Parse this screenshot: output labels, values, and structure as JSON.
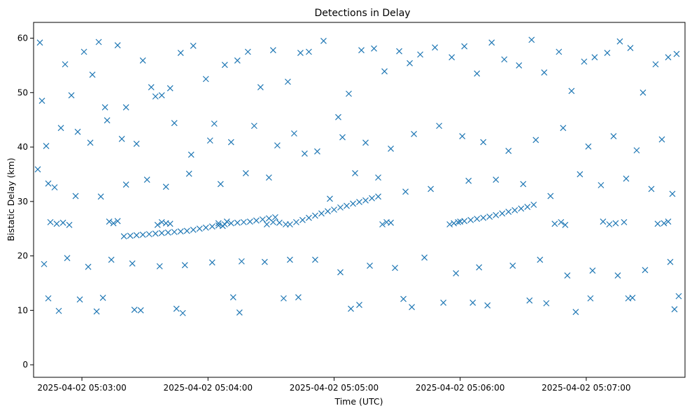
{
  "chart_data": {
    "type": "scatter",
    "title": "Detections in Delay",
    "xlabel": "Time (UTC)",
    "ylabel": "Bistatic Delay (km)",
    "x_unit": "seconds",
    "x_range": [
      "2025-04-02 05:02:37",
      "2025-04-02 05:07:47"
    ],
    "ylim": [
      -2.3,
      62.9
    ],
    "x_ticks": [
      {
        "time": "2025-04-02 05:03:00",
        "label": "2025-04-02 05:03:00"
      },
      {
        "time": "2025-04-02 05:04:00",
        "label": "2025-04-02 05:04:00"
      },
      {
        "time": "2025-04-02 05:05:00",
        "label": "2025-04-02 05:05:00"
      },
      {
        "time": "2025-04-02 05:06:00",
        "label": "2025-04-02 05:06:00"
      },
      {
        "time": "2025-04-02 05:07:00",
        "label": "2025-04-02 05:07:00"
      }
    ],
    "y_ticks": [
      0,
      10,
      20,
      30,
      40,
      50,
      60
    ],
    "grid": false,
    "legend": "none",
    "marker": "x",
    "color": "#1f77b4",
    "series": [
      {
        "x": [
          "2025-04-02 05:02:40",
          "2025-04-02 05:02:41",
          "2025-04-02 05:02:44",
          "2025-04-02 05:02:52",
          "2025-04-02 05:02:55",
          "2025-04-02 05:03:01",
          "2025-04-02 05:03:05",
          "2025-04-02 05:03:08",
          "2025-04-02 05:03:12",
          "2025-04-02 05:03:17",
          "2025-04-02 05:03:21",
          "2025-04-02 05:03:29",
          "2025-04-02 05:03:33",
          "2025-04-02 05:03:38",
          "2025-04-02 05:03:42",
          "2025-04-02 05:03:47",
          "2025-04-02 05:03:53",
          "2025-04-02 05:03:59",
          "2025-04-02 05:04:03",
          "2025-04-02 05:04:08",
          "2025-04-02 05:04:14",
          "2025-04-02 05:04:19",
          "2025-04-02 05:04:25",
          "2025-04-02 05:04:31",
          "2025-04-02 05:04:38",
          "2025-04-02 05:04:44",
          "2025-04-02 05:04:48",
          "2025-04-02 05:04:55",
          "2025-04-02 05:05:02",
          "2025-04-02 05:05:07",
          "2025-04-02 05:05:13",
          "2025-04-02 05:05:19",
          "2025-04-02 05:05:24",
          "2025-04-02 05:05:31",
          "2025-04-02 05:05:36",
          "2025-04-02 05:05:41",
          "2025-04-02 05:05:48",
          "2025-04-02 05:05:56",
          "2025-04-02 05:06:02",
          "2025-04-02 05:06:08",
          "2025-04-02 05:06:15",
          "2025-04-02 05:06:21",
          "2025-04-02 05:06:28",
          "2025-04-02 05:06:34",
          "2025-04-02 05:06:40",
          "2025-04-02 05:06:47",
          "2025-04-02 05:06:53",
          "2025-04-02 05:06:59",
          "2025-04-02 05:07:04",
          "2025-04-02 05:07:10",
          "2025-04-02 05:07:16",
          "2025-04-02 05:07:21",
          "2025-04-02 05:07:27",
          "2025-04-02 05:07:33",
          "2025-04-02 05:07:39",
          "2025-04-02 05:07:43",
          "2025-04-02 05:02:43",
          "2025-04-02 05:02:50",
          "2025-04-02 05:02:58",
          "2025-04-02 05:03:04",
          "2025-04-02 05:03:11",
          "2025-04-02 05:03:19",
          "2025-04-02 05:03:26",
          "2025-04-02 05:03:35",
          "2025-04-02 05:03:44",
          "2025-04-02 05:03:52",
          "2025-04-02 05:04:01",
          "2025-04-02 05:04:11",
          "2025-04-02 05:04:22",
          "2025-04-02 05:04:33",
          "2025-04-02 05:04:41",
          "2025-04-02 05:04:52",
          "2025-04-02 05:05:04",
          "2025-04-02 05:05:15",
          "2025-04-02 05:05:27",
          "2025-04-02 05:05:38",
          "2025-04-02 05:05:50",
          "2025-04-02 05:06:01",
          "2025-04-02 05:06:11",
          "2025-04-02 05:06:23",
          "2025-04-02 05:06:36",
          "2025-04-02 05:06:49",
          "2025-04-02 05:07:01",
          "2025-04-02 05:07:13",
          "2025-04-02 05:07:24",
          "2025-04-02 05:07:36",
          "2025-04-02 05:02:39",
          "2025-04-02 05:02:47",
          "2025-04-02 05:02:57",
          "2025-04-02 05:03:09",
          "2025-04-02 05:03:21",
          "2025-04-02 05:03:31",
          "2025-04-02 05:03:40",
          "2025-04-02 05:03:51",
          "2025-04-02 05:04:06",
          "2025-04-02 05:04:18",
          "2025-04-02 05:04:29",
          "2025-04-02 05:04:46",
          "2025-04-02 05:04:58",
          "2025-04-02 05:05:10",
          "2025-04-02 05:05:21",
          "2025-04-02 05:05:34",
          "2025-04-02 05:05:46",
          "2025-04-02 05:06:04",
          "2025-04-02 05:06:17",
          "2025-04-02 05:06:30",
          "2025-04-02 05:06:43",
          "2025-04-02 05:06:57",
          "2025-04-02 05:07:07",
          "2025-04-02 05:07:19",
          "2025-04-02 05:07:31",
          "2025-04-02 05:07:41",
          "2025-04-02 05:02:42",
          "2025-04-02 05:02:53",
          "2025-04-02 05:03:03",
          "2025-04-02 05:03:14",
          "2025-04-02 05:03:24",
          "2025-04-02 05:03:37",
          "2025-04-02 05:03:49",
          "2025-04-02 05:04:02",
          "2025-04-02 05:04:16",
          "2025-04-02 05:04:27",
          "2025-04-02 05:04:39",
          "2025-04-02 05:04:51",
          "2025-04-02 05:05:03",
          "2025-04-02 05:05:17",
          "2025-04-02 05:05:29",
          "2025-04-02 05:05:43",
          "2025-04-02 05:05:58",
          "2025-04-02 05:06:09",
          "2025-04-02 05:06:25",
          "2025-04-02 05:06:38",
          "2025-04-02 05:06:51",
          "2025-04-02 05:07:03",
          "2025-04-02 05:07:15",
          "2025-04-02 05:07:28",
          "2025-04-02 05:07:40",
          "2025-04-02 05:02:45",
          "2025-04-02 05:02:48",
          "2025-04-02 05:02:51",
          "2025-04-02 05:02:54",
          "2025-04-02 05:03:13",
          "2025-04-02 05:03:15",
          "2025-04-02 05:03:17",
          "2025-04-02 05:03:36",
          "2025-04-02 05:03:38",
          "2025-04-02 05:03:40",
          "2025-04-02 05:03:42",
          "2025-04-02 05:04:05",
          "2025-04-02 05:04:07",
          "2025-04-02 05:04:09",
          "2025-04-02 05:04:28",
          "2025-04-02 05:04:31",
          "2025-04-02 05:04:34",
          "2025-04-02 05:04:37",
          "2025-04-02 05:05:23",
          "2025-04-02 05:05:25",
          "2025-04-02 05:05:27",
          "2025-04-02 05:05:55",
          "2025-04-02 05:05:57",
          "2025-04-02 05:06:00",
          "2025-04-02 05:06:45",
          "2025-04-02 05:06:48",
          "2025-04-02 05:06:50",
          "2025-04-02 05:07:08",
          "2025-04-02 05:07:11",
          "2025-04-02 05:07:14",
          "2025-04-02 05:07:18",
          "2025-04-02 05:07:34",
          "2025-04-02 05:07:37",
          "2025-04-02 05:07:39",
          "2025-04-02 05:03:20",
          "2025-04-02 05:03:23",
          "2025-04-02 05:03:26",
          "2025-04-02 05:03:29",
          "2025-04-02 05:03:32",
          "2025-04-02 05:03:35",
          "2025-04-02 05:03:38",
          "2025-04-02 05:03:41",
          "2025-04-02 05:03:44",
          "2025-04-02 05:03:47",
          "2025-04-02 05:03:50",
          "2025-04-02 05:03:53",
          "2025-04-02 05:03:56",
          "2025-04-02 05:03:59",
          "2025-04-02 05:04:02",
          "2025-04-02 05:04:05",
          "2025-04-02 05:04:08",
          "2025-04-02 05:04:11",
          "2025-04-02 05:04:14",
          "2025-04-02 05:04:17",
          "2025-04-02 05:04:20",
          "2025-04-02 05:04:23",
          "2025-04-02 05:04:26",
          "2025-04-02 05:04:29",
          "2025-04-02 05:04:32",
          "2025-04-02 05:04:39",
          "2025-04-02 05:04:42",
          "2025-04-02 05:04:45",
          "2025-04-02 05:04:48",
          "2025-04-02 05:04:51",
          "2025-04-02 05:04:54",
          "2025-04-02 05:04:57",
          "2025-04-02 05:05:00",
          "2025-04-02 05:05:03",
          "2025-04-02 05:05:06",
          "2025-04-02 05:05:09",
          "2025-04-02 05:05:12",
          "2025-04-02 05:05:15",
          "2025-04-02 05:05:18",
          "2025-04-02 05:05:21",
          "2025-04-02 05:05:59",
          "2025-04-02 05:06:02",
          "2025-04-02 05:06:05",
          "2025-04-02 05:06:08",
          "2025-04-02 05:06:11",
          "2025-04-02 05:06:14",
          "2025-04-02 05:06:17",
          "2025-04-02 05:06:20",
          "2025-04-02 05:06:23",
          "2025-04-02 05:06:26",
          "2025-04-02 05:06:29",
          "2025-04-02 05:06:32",
          "2025-04-02 05:06:35",
          "2025-04-02 05:02:44",
          "2025-04-02 05:02:59",
          "2025-04-02 05:03:10",
          "2025-04-02 05:03:28",
          "2025-04-02 05:03:45",
          "2025-04-02 05:04:12",
          "2025-04-02 05:04:36",
          "2025-04-02 05:05:08",
          "2025-04-02 05:05:33",
          "2025-04-02 05:05:52",
          "2025-04-02 05:06:13",
          "2025-04-02 05:06:41",
          "2025-04-02 05:07:02",
          "2025-04-02 05:07:22",
          "2025-04-02 05:07:44",
          "2025-04-02 05:02:49",
          "2025-04-02 05:03:07",
          "2025-04-02 05:03:25",
          "2025-04-02 05:03:48",
          "2025-04-02 05:04:15",
          "2025-04-02 05:04:43",
          "2025-04-02 05:05:12",
          "2025-04-02 05:05:37",
          "2025-04-02 05:06:06",
          "2025-04-02 05:06:33",
          "2025-04-02 05:06:55",
          "2025-04-02 05:07:20",
          "2025-04-02 05:07:42"
        ],
        "y": [
          59.2,
          48.5,
          33.3,
          55.2,
          49.5,
          57.5,
          53.3,
          59.3,
          44.9,
          58.7,
          47.3,
          55.9,
          51.0,
          49.5,
          50.8,
          57.3,
          58.6,
          52.5,
          44.3,
          55.1,
          55.9,
          57.5,
          51.0,
          57.8,
          52.0,
          57.3,
          57.5,
          59.5,
          45.5,
          49.8,
          57.8,
          58.1,
          53.9,
          57.6,
          55.4,
          57.0,
          58.3,
          56.5,
          58.5,
          53.5,
          59.2,
          56.1,
          55.0,
          59.7,
          53.7,
          57.5,
          50.3,
          55.7,
          56.5,
          57.3,
          59.4,
          58.2,
          50.0,
          55.2,
          56.5,
          57.1,
          40.2,
          43.5,
          42.8,
          40.8,
          47.3,
          41.5,
          40.6,
          49.3,
          44.4,
          38.6,
          41.2,
          40.9,
          43.9,
          40.3,
          42.5,
          39.2,
          41.8,
          40.8,
          39.7,
          42.4,
          43.9,
          42.0,
          40.9,
          39.3,
          41.3,
          43.5,
          40.1,
          42.0,
          39.4,
          41.4,
          35.9,
          32.6,
          31.0,
          30.9,
          33.1,
          34.0,
          32.7,
          35.1,
          33.2,
          35.2,
          34.4,
          38.8,
          30.5,
          35.2,
          34.4,
          31.8,
          32.3,
          33.8,
          34.0,
          33.2,
          31.0,
          35.0,
          33.0,
          34.2,
          32.3,
          31.4,
          18.5,
          19.6,
          18.0,
          19.3,
          18.6,
          18.1,
          18.3,
          18.8,
          19.0,
          18.9,
          19.3,
          19.3,
          17.0,
          18.2,
          17.8,
          19.7,
          16.8,
          17.9,
          18.2,
          19.3,
          16.4,
          17.3,
          16.4,
          17.4,
          18.9,
          26.2,
          25.9,
          26.1,
          25.7,
          26.3,
          26.0,
          26.4,
          25.7,
          26.2,
          26.0,
          25.9,
          26.0,
          25.5,
          26.3,
          25.8,
          26.2,
          26.1,
          25.8,
          25.8,
          26.2,
          26.1,
          25.8,
          26.0,
          26.3,
          25.9,
          26.2,
          25.7,
          26.3,
          25.8,
          26.0,
          26.2,
          25.9,
          26.0,
          26.3,
          23.6,
          23.7,
          23.8,
          23.9,
          24.0,
          24.1,
          24.2,
          24.3,
          24.4,
          24.5,
          24.6,
          24.8,
          25.0,
          25.2,
          25.4,
          25.6,
          25.8,
          26.0,
          26.1,
          26.2,
          26.3,
          26.5,
          26.7,
          26.9,
          27.1,
          25.8,
          26.2,
          26.6,
          27.0,
          27.4,
          27.8,
          28.2,
          28.5,
          28.9,
          29.2,
          29.6,
          29.9,
          30.2,
          30.6,
          30.9,
          26.2,
          26.4,
          26.6,
          26.8,
          27.0,
          27.2,
          27.5,
          27.8,
          28.1,
          28.4,
          28.7,
          29.0,
          29.4,
          12.2,
          12.0,
          12.3,
          10.0,
          10.3,
          12.4,
          12.2,
          10.3,
          12.1,
          11.4,
          10.9,
          11.3,
          12.2,
          12.3,
          12.6,
          9.9,
          9.8,
          10.1,
          9.5,
          9.6,
          12.4,
          11.0,
          10.6,
          11.4,
          11.8,
          9.7,
          12.2,
          10.2
        ]
      }
    ]
  }
}
